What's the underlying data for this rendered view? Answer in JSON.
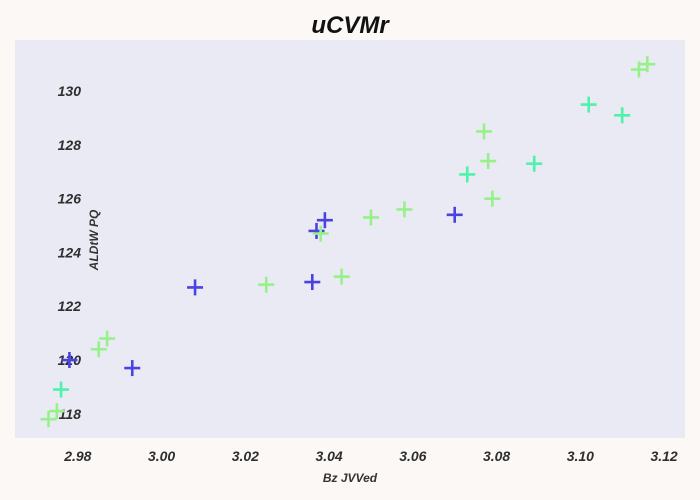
{
  "chart_data": {
    "type": "scatter",
    "title": "uCVMr",
    "xlabel": "Bz JVVed",
    "ylabel": "ALDtW PQ",
    "xlim": [
      2.965,
      3.125
    ],
    "ylim": [
      117.1,
      131.9
    ],
    "xticks": [
      "2.98",
      "3.00",
      "3.02",
      "3.04",
      "3.06",
      "3.08",
      "3.10",
      "3.12"
    ],
    "xtick_values": [
      2.98,
      3.0,
      3.02,
      3.04,
      3.06,
      3.08,
      3.1,
      3.12
    ],
    "yticks": [
      "118",
      "120",
      "122",
      "124",
      "126",
      "128",
      "130"
    ],
    "ytick_values": [
      118,
      120,
      122,
      124,
      126,
      128,
      130
    ],
    "grid": false,
    "marker": "plus",
    "colors": {
      "plot_background": "#eaeaf4",
      "page_background": "#fbf8f6"
    },
    "points": [
      {
        "x": 2.973,
        "y": 117.8,
        "color": "#98f08a"
      },
      {
        "x": 2.975,
        "y": 118.1,
        "color": "#98f08a"
      },
      {
        "x": 2.976,
        "y": 118.9,
        "color": "#4ff2a8"
      },
      {
        "x": 2.978,
        "y": 120.0,
        "color": "#4a43e2"
      },
      {
        "x": 2.985,
        "y": 120.4,
        "color": "#98f08a"
      },
      {
        "x": 2.987,
        "y": 120.8,
        "color": "#98f08a"
      },
      {
        "x": 2.993,
        "y": 119.7,
        "color": "#4a43e2"
      },
      {
        "x": 3.008,
        "y": 122.7,
        "color": "#4a43e2"
      },
      {
        "x": 3.025,
        "y": 122.8,
        "color": "#98f08a"
      },
      {
        "x": 3.036,
        "y": 122.9,
        "color": "#4a43e2"
      },
      {
        "x": 3.037,
        "y": 124.8,
        "color": "#4a43e2"
      },
      {
        "x": 3.038,
        "y": 124.7,
        "color": "#98f08a"
      },
      {
        "x": 3.039,
        "y": 125.2,
        "color": "#4a43e2"
      },
      {
        "x": 3.043,
        "y": 123.1,
        "color": "#98f08a"
      },
      {
        "x": 3.05,
        "y": 125.3,
        "color": "#98f08a"
      },
      {
        "x": 3.058,
        "y": 125.6,
        "color": "#98f08a"
      },
      {
        "x": 3.07,
        "y": 125.4,
        "color": "#4a43e2"
      },
      {
        "x": 3.073,
        "y": 126.9,
        "color": "#4ff2a8"
      },
      {
        "x": 3.077,
        "y": 128.5,
        "color": "#98f08a"
      },
      {
        "x": 3.078,
        "y": 127.4,
        "color": "#98f08a"
      },
      {
        "x": 3.079,
        "y": 126.0,
        "color": "#98f08a"
      },
      {
        "x": 3.089,
        "y": 127.3,
        "color": "#4ff2a8"
      },
      {
        "x": 3.102,
        "y": 129.5,
        "color": "#4ff2a8"
      },
      {
        "x": 3.11,
        "y": 129.1,
        "color": "#4ff2a8"
      },
      {
        "x": 3.114,
        "y": 130.8,
        "color": "#98f08a"
      },
      {
        "x": 3.116,
        "y": 131.0,
        "color": "#98f08a"
      }
    ]
  }
}
